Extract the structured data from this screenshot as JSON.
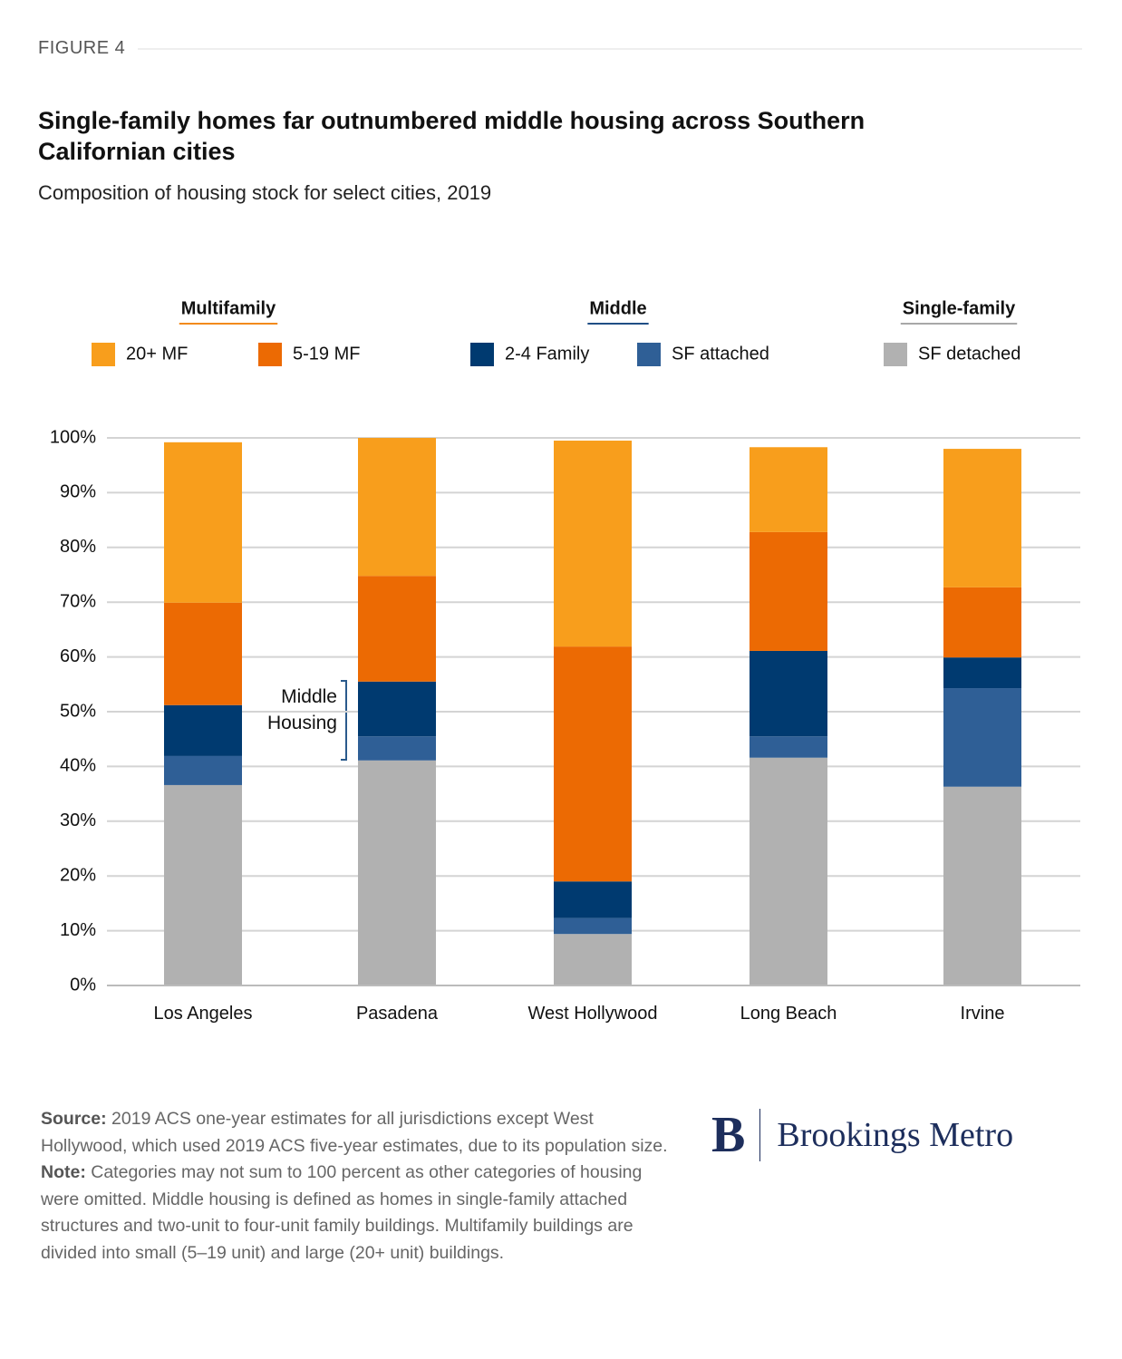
{
  "figure_label": "FIGURE 4",
  "chart_data": {
    "type": "stacked-bar",
    "title": "Single-family homes far outnumbered middle housing across Southern Californian cities",
    "subtitle": "Composition of housing stock for select cities, 2019",
    "annotation": "Middle Housing",
    "categories": [
      "Los Angeles",
      "Pasadena",
      "West Hollywood",
      "Long Beach",
      "Irvine"
    ],
    "series": [
      {
        "name": "SF detached",
        "color": "#b1b1b1",
        "values": [
          36.6,
          41.1,
          9.4,
          41.6,
          36.3
        ]
      },
      {
        "name": "SF attached",
        "color": "#2f5f96",
        "values": [
          5.3,
          4.4,
          2.9,
          3.9,
          18.0
        ]
      },
      {
        "name": "2-4 Family",
        "color": "#003a70",
        "values": [
          9.3,
          10.0,
          6.7,
          15.6,
          5.6
        ]
      },
      {
        "name": "5-19 MF",
        "color": "#ec6a03",
        "values": [
          18.7,
          19.3,
          42.9,
          21.7,
          12.8
        ]
      },
      {
        "name": "20+ MF",
        "color": "#f89e1c",
        "values": [
          29.3,
          25.2,
          37.6,
          15.5,
          25.3
        ]
      }
    ],
    "legend_groups": [
      {
        "name": "Multifamily",
        "color": "#f28a1c"
      },
      {
        "name": "Middle",
        "color": "#1f4e85"
      },
      {
        "name": "Single-family",
        "color": "#a8a8a8"
      }
    ],
    "ylim": [
      0,
      100
    ],
    "yticks": [
      {
        "value": 0,
        "label": "0%"
      },
      {
        "value": 10,
        "label": "10%"
      },
      {
        "value": 20,
        "label": "20%"
      },
      {
        "value": 30,
        "label": "30%"
      },
      {
        "value": 40,
        "label": "40%"
      },
      {
        "value": 50,
        "label": "50%"
      },
      {
        "value": 60,
        "label": "60%"
      },
      {
        "value": 70,
        "label": "70%"
      },
      {
        "value": 80,
        "label": "80%"
      },
      {
        "value": 90,
        "label": "90%"
      },
      {
        "value": 100,
        "label": "100%"
      }
    ],
    "grid": true
  },
  "footer": {
    "source_label": "Source:",
    "source": "2019 ACS one-year estimates for all jurisdictions except West Hollywood, which used 2019 ACS five-year estimates, due to its population size.",
    "note_label": "Note:",
    "note": "Categories may not sum to 100 percent as other categories of housing were omitted. Middle housing is defined as homes in single-family attached structures and two-unit to four-unit family buildings. Multifamily buildings are divided into small (5–19 unit) and large (20+ unit) buildings."
  },
  "logo": {
    "mark": "B",
    "name": "Brookings Metro"
  }
}
